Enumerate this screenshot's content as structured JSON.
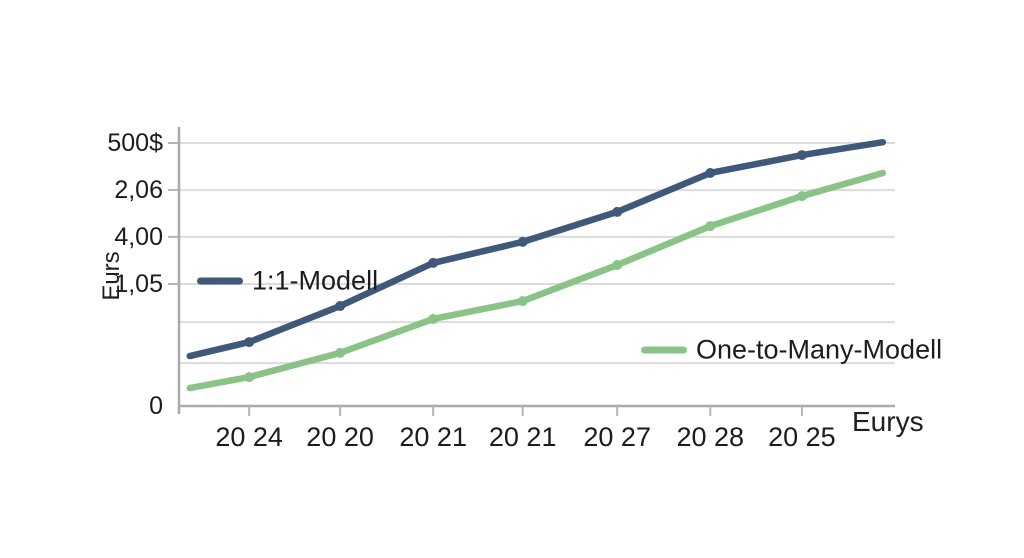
{
  "page": {
    "background": "#ffffff",
    "text_color": "#1e1e1e"
  },
  "chart_data": {
    "type": "line",
    "title": "",
    "x_axis_title": "Eurys",
    "y_axis_title": "Eurs",
    "grid": true,
    "legend_position": "inside-plot",
    "axis_color": "#ababab",
    "gridline_color": "#dcdcdc",
    "tick_color": "#b5b5b5",
    "label_color": "#1c1c1c",
    "ylim": [
      0,
      100
    ],
    "y_gridlines": [
      {
        "label": "500$",
        "pos": 1.0
      },
      {
        "label": "2,06",
        "pos": 0.821
      },
      {
        "label": "4,00",
        "pos": 0.643
      },
      {
        "label": "1,05",
        "pos": 0.464
      },
      {
        "label": "",
        "pos": 0.319
      },
      {
        "label": "",
        "pos": 0.163
      },
      {
        "label": "0",
        "pos": 0.0
      }
    ],
    "x_point_positions": [
      0.015,
      0.098,
      0.225,
      0.355,
      0.48,
      0.612,
      0.742,
      0.87,
      0.983
    ],
    "x_tick_labels": [
      "20 24",
      "20 20",
      "20 21",
      "20 21",
      "20 27",
      "20 28",
      "20 25"
    ],
    "x_tick_point_indices": [
      1,
      2,
      3,
      4,
      5,
      6,
      7
    ],
    "series": [
      {
        "name": "1:1-Modell",
        "color": "#40587a",
        "values": [
          19.0,
          24.3,
          38.0,
          54.4,
          62.4,
          73.8,
          88.6,
          95.4,
          100.3
        ]
      },
      {
        "name": "One-to-Many-Modell",
        "color": "#89c386",
        "values": [
          6.8,
          11.0,
          20.2,
          33.1,
          39.9,
          53.6,
          68.4,
          79.8,
          88.6
        ]
      }
    ]
  }
}
